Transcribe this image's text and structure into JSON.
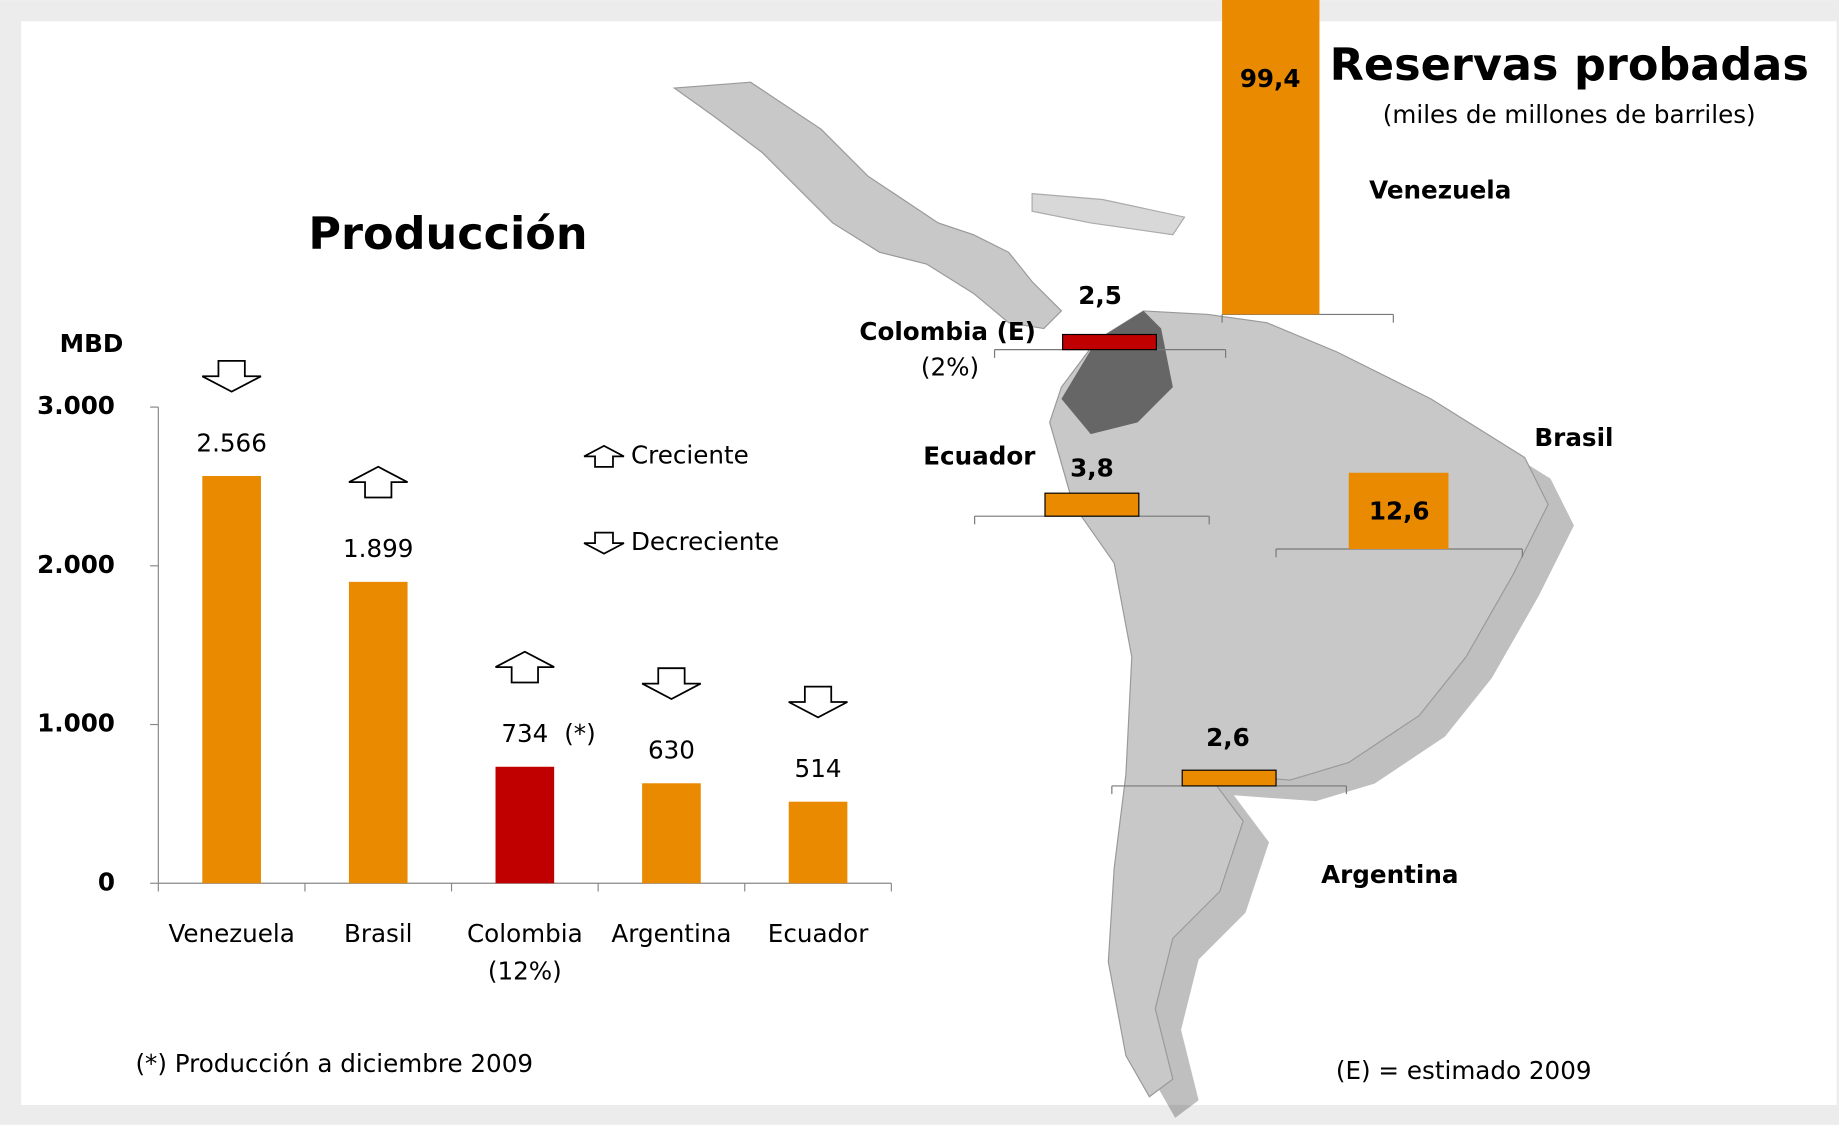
{
  "chart_data": [
    {
      "type": "bar",
      "title": "Producción",
      "y_label": "MBD",
      "categories": [
        "Venezuela",
        "Brasil",
        "Colombia",
        "Argentina",
        "Ecuador"
      ],
      "category_notes": [
        null,
        null,
        "(12%)",
        null,
        null
      ],
      "values": [
        2566,
        1899,
        734,
        630,
        514
      ],
      "value_labels": [
        "2.566",
        "1.899",
        "734",
        "630",
        "514"
      ],
      "value_notes": [
        null,
        null,
        "(*)",
        null,
        null
      ],
      "colors": [
        "#e98a00",
        "#e98a00",
        "#c00000",
        "#e98a00",
        "#e98a00"
      ],
      "trends": [
        "down",
        "up",
        "up",
        "down",
        "down"
      ],
      "legend": [
        {
          "label": "Creciente",
          "trend": "up"
        },
        {
          "label": "Decreciente",
          "trend": "down"
        }
      ],
      "ylim": [
        0,
        3000
      ],
      "yticks": [
        0,
        {
          "value": 1000,
          "label": "1.000"
        },
        {
          "value": 2000,
          "label": "2.000"
        },
        {
          "value": 3000,
          "label": "3.000"
        }
      ],
      "footnote": "(*) Producción a diciembre 2009"
    },
    {
      "type": "map-bar",
      "title": "Reservas probadas",
      "subtitle": "(miles de millones de barriles)",
      "categories": [
        "Venezuela",
        "Colombia (E)",
        "Brasil",
        "Ecuador",
        "Argentina"
      ],
      "category_notes": [
        null,
        "(2%)",
        null,
        null,
        null
      ],
      "values": [
        99.4,
        2.5,
        12.6,
        3.8,
        2.6
      ],
      "value_labels": [
        "99,4",
        "2,5",
        "12,6",
        "3,8",
        "2,6"
      ],
      "colors": [
        "#e98a00",
        "#c00000",
        "#e98a00",
        "#e98a00",
        "#e98a00"
      ],
      "footnote": "(E) = estimado 2009"
    }
  ]
}
